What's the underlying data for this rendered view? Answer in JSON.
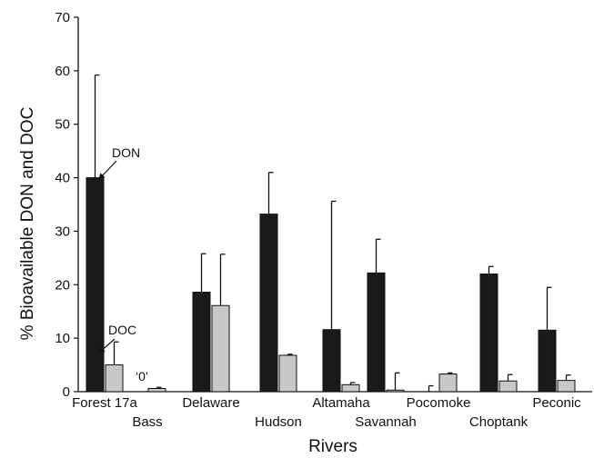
{
  "chart_data": {
    "type": "bar",
    "xlabel": "Rivers",
    "ylabel": "% Bioavailable DON and DOC",
    "ylim": [
      0,
      70
    ],
    "yticks": [
      0,
      10,
      20,
      30,
      40,
      50,
      60,
      70
    ],
    "grid": false,
    "categories": [
      "Forest 17a",
      "Bass",
      "Delaware",
      "Hudson",
      "Altamaha",
      "Savannah",
      "Pocomoke",
      "Choptank",
      "Peconic"
    ],
    "series": [
      {
        "name": "DON",
        "color": "#1a1a1a",
        "values": [
          40.0,
          0.0,
          18.6,
          33.2,
          11.6,
          22.2,
          0.0,
          22.0,
          11.5
        ],
        "error": [
          19.2,
          0.0,
          7.2,
          7.8,
          24.0,
          6.3,
          1.1,
          1.4,
          8.0
        ]
      },
      {
        "name": "DOC",
        "color": "#c8c8c8",
        "values": [
          5.0,
          0.6,
          16.1,
          6.8,
          1.3,
          0.3,
          3.3,
          2.0,
          2.1
        ],
        "error": [
          4.3,
          0.2,
          9.6,
          0.2,
          0.4,
          3.2,
          0.2,
          1.2,
          1.0
        ]
      }
    ],
    "annotations": [
      "DON",
      "DOC",
      "‘0’"
    ]
  }
}
